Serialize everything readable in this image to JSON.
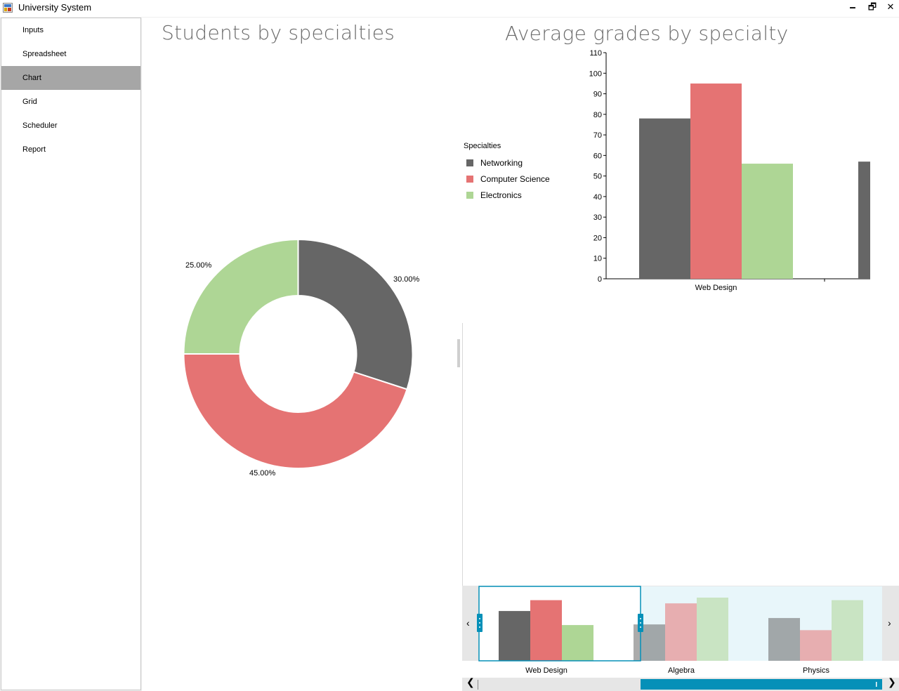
{
  "window": {
    "title": "University System",
    "minimize": "🗕",
    "restore": "🗗",
    "close": "✕"
  },
  "sidebar": {
    "items": [
      {
        "label": "Inputs"
      },
      {
        "label": "Spreadsheet"
      },
      {
        "label": "Chart",
        "active": true
      },
      {
        "label": "Grid"
      },
      {
        "label": "Scheduler"
      },
      {
        "label": "Report"
      }
    ]
  },
  "colors": {
    "networking": "#666666",
    "computer_science": "#e57373",
    "electronics": "#aed695",
    "accent": "#0590b8"
  },
  "pie": {
    "title": "Students by specialties",
    "labels": [
      "30.00%",
      "45.00%",
      "25.00%"
    ]
  },
  "bar": {
    "title": "Average grades by specialty",
    "legend_title": "Specialties",
    "legend": [
      "Networking",
      "Computer Science",
      "Electronics"
    ]
  },
  "chart_data": [
    {
      "type": "pie",
      "title": "Students by specialties",
      "donut": true,
      "slices": [
        {
          "name": "Networking",
          "value": 30.0
        },
        {
          "name": "Computer Science",
          "value": 45.0
        },
        {
          "name": "Electronics",
          "value": 25.0
        }
      ]
    },
    {
      "type": "bar",
      "title": "Average grades by specialty",
      "categories": [
        "Web Design"
      ],
      "series": [
        {
          "name": "Networking",
          "values": [
            78
          ]
        },
        {
          "name": "Computer Science",
          "values": [
            95
          ]
        },
        {
          "name": "Electronics",
          "values": [
            56
          ]
        }
      ],
      "partial_next_value": 57,
      "ylim": [
        0,
        110
      ],
      "yticks": [
        0,
        10,
        20,
        30,
        40,
        50,
        60,
        70,
        80,
        90,
        100,
        110
      ],
      "legend_position": "left"
    },
    {
      "type": "bar",
      "role": "range-navigator",
      "categories": [
        "Web Design",
        "Algebra",
        "Physics"
      ],
      "series": [
        {
          "name": "Networking",
          "values": [
            78,
            57,
            67
          ]
        },
        {
          "name": "Computer Science",
          "values": [
            95,
            90,
            48
          ]
        },
        {
          "name": "Electronics",
          "values": [
            56,
            99,
            95
          ]
        }
      ],
      "ylim": [
        0,
        110
      ],
      "selected_range": [
        "Web Design",
        "Web Design"
      ]
    }
  ],
  "scrollbar": {
    "left_arrow": "❮",
    "right_arrow": "❯"
  }
}
